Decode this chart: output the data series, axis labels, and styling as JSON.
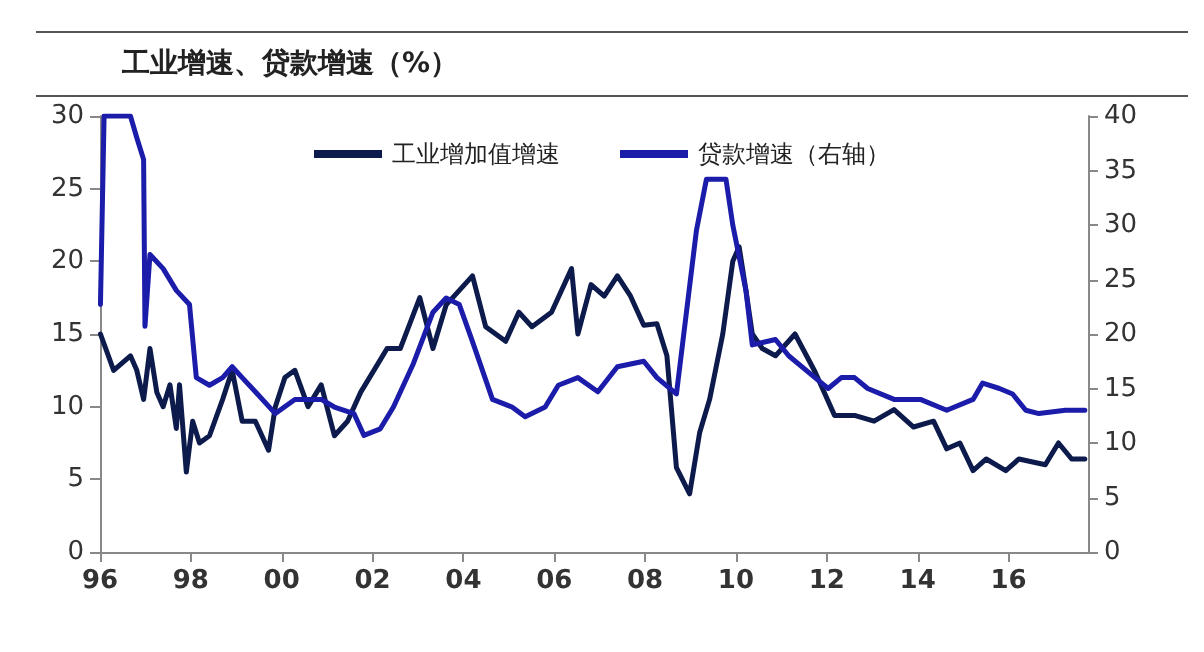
{
  "chart_data": {
    "type": "line",
    "title": "工业增速、贷款增速（%）",
    "xlim": [
      1996,
      2017.75
    ],
    "xticks": [
      {
        "value": 1996,
        "label": "96"
      },
      {
        "value": 1998,
        "label": "98"
      },
      {
        "value": 2000,
        "label": "00"
      },
      {
        "value": 2002,
        "label": "02"
      },
      {
        "value": 2004,
        "label": "04"
      },
      {
        "value": 2006,
        "label": "06"
      },
      {
        "value": 2008,
        "label": "08"
      },
      {
        "value": 2010,
        "label": "10"
      },
      {
        "value": 2012,
        "label": "12"
      },
      {
        "value": 2014,
        "label": "14"
      },
      {
        "value": 2016,
        "label": "16"
      }
    ],
    "ylim": [
      0,
      30
    ],
    "yticks": [
      0,
      5,
      10,
      15,
      20,
      25,
      30
    ],
    "y2lim": [
      0,
      40
    ],
    "y2ticks": [
      0,
      5,
      10,
      15,
      20,
      25,
      30,
      35,
      40
    ],
    "legend": "top",
    "marker": "none",
    "line_style": "solid",
    "grid": false,
    "series": [
      {
        "name": "工业增加值增速",
        "color": "#0d1b4c",
        "x": [
          1996.01,
          1996.3,
          1996.67,
          1996.81,
          1996.96,
          1997.1,
          1997.25,
          1997.39,
          1997.54,
          1997.68,
          1997.75,
          1997.9,
          1998.04,
          1998.19,
          1998.41,
          1998.7,
          1998.91,
          1999.13,
          1999.42,
          1999.71,
          1999.86,
          2000.07,
          2000.29,
          2000.58,
          2000.87,
          2001.16,
          2001.45,
          2001.74,
          2002.03,
          2002.32,
          2002.61,
          2003.04,
          2003.33,
          2003.62,
          2003.91,
          2004.2,
          2004.49,
          2004.93,
          2005.22,
          2005.51,
          2005.94,
          2006.38,
          2006.52,
          2006.81,
          2007.1,
          2007.39,
          2007.68,
          2007.97,
          2008.26,
          2008.48,
          2008.69,
          2008.98,
          2009.2,
          2009.42,
          2009.71,
          2009.93,
          2010.07,
          2010.22,
          2010.36,
          2010.58,
          2010.87,
          2011.3,
          2011.74,
          2012.17,
          2012.61,
          2013.04,
          2013.48,
          2013.91,
          2014.35,
          2014.64,
          2014.93,
          2015.22,
          2015.51,
          2015.94,
          2016.23,
          2016.81,
          2017.1,
          2017.39,
          2017.68
        ],
        "values": [
          15,
          12.5,
          13.5,
          12.5,
          10.5,
          14,
          11,
          10,
          11.5,
          8.5,
          11.5,
          5.5,
          9,
          7.5,
          8,
          10.5,
          12.5,
          9,
          9,
          7,
          10,
          12,
          12.5,
          10,
          11.5,
          8,
          9,
          11,
          12.5,
          14,
          14,
          17.5,
          14,
          17,
          18,
          19,
          15.5,
          14.5,
          16.5,
          15.5,
          16.5,
          19.5,
          15,
          18.4,
          17.6,
          19,
          17.6,
          15.6,
          15.7,
          13.5,
          5.8,
          4,
          8.2,
          10.5,
          15,
          20,
          21,
          18,
          15,
          14,
          13.5,
          15,
          12.4,
          9.4,
          9.4,
          9,
          9.8,
          8.6,
          9,
          7.1,
          7.5,
          5.6,
          6.4,
          5.6,
          6.4,
          6,
          7.5,
          6.4,
          6.4
        ]
      },
      {
        "name": "贷款增速（右轴）",
        "color": "#1c1caa",
        "axis": "y2",
        "x": [
          1996.01,
          1996.09,
          1996.3,
          1996.67,
          1996.81,
          1996.96,
          1996.99,
          1997.1,
          1997.39,
          1997.68,
          1997.97,
          1998.12,
          1998.41,
          1998.7,
          1998.91,
          1999.13,
          1999.42,
          1999.86,
          2000.29,
          2000.87,
          2001.16,
          2001.59,
          2001.81,
          2002.17,
          2002.46,
          2002.9,
          2003.33,
          2003.62,
          2003.91,
          2004.2,
          2004.64,
          2005.07,
          2005.36,
          2005.8,
          2006.09,
          2006.52,
          2006.96,
          2007.39,
          2007.97,
          2008.26,
          2008.69,
          2009.13,
          2009.35,
          2009.78,
          2009.93,
          2010.22,
          2010.36,
          2010.87,
          2011.16,
          2011.74,
          2012.03,
          2012.32,
          2012.61,
          2012.9,
          2013.48,
          2014.06,
          2014.64,
          2015.22,
          2015.43,
          2015.8,
          2016.09,
          2016.38,
          2016.67,
          2017.25,
          2017.68
        ],
        "values": [
          22.7,
          40,
          40,
          40,
          38,
          36,
          20.7,
          27.3,
          26,
          24,
          22.7,
          16,
          15.3,
          16,
          17,
          16,
          14.7,
          12.7,
          14,
          14,
          13.3,
          12.7,
          10.7,
          11.3,
          13.3,
          17.3,
          22,
          23.3,
          22.7,
          19.3,
          14,
          13.3,
          12.4,
          13.3,
          15.3,
          16,
          14.7,
          17,
          17.5,
          16,
          14.5,
          29.5,
          34.2,
          34.2,
          30,
          24,
          19,
          19.5,
          18,
          16,
          15,
          16,
          16,
          15,
          14,
          14,
          13,
          14,
          15.5,
          15,
          14.5,
          13,
          12.7,
          13,
          13
        ]
      }
    ]
  }
}
